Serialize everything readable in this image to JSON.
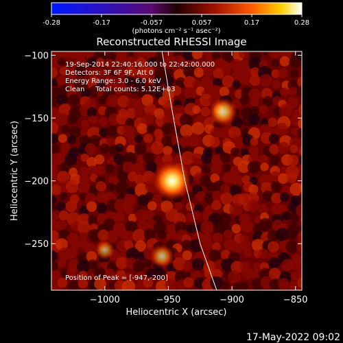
{
  "colorbar": {
    "ticks": [
      "-0.28",
      "-0.17",
      "-0.057",
      "0.057",
      "0.17",
      "0.28"
    ],
    "units": "(photons cm⁻² s⁻¹ asec⁻²)"
  },
  "chart_data": {
    "type": "heatmap",
    "title": "Reconstructed RHESSI Image",
    "xlabel": "Heliocentric X (arcsec)",
    "ylabel": "Heliocentric Y (arcsec)",
    "xlim": [
      -1042,
      -845
    ],
    "ylim": [
      -287,
      -97
    ],
    "x_ticks": [
      -1000,
      -950,
      -900,
      -850
    ],
    "y_ticks": [
      -250,
      -200,
      -150,
      -100
    ],
    "x_tick_labels": [
      "−1000",
      "−950",
      "−900",
      "−850"
    ],
    "y_tick_labels": [
      "−250",
      "−200",
      "−150",
      "−100"
    ],
    "color_range": [
      -0.28,
      0.28
    ],
    "colormap": "blue-purple-red-yellow-white",
    "annotations": [
      "19-Sep-2014 22:40:16.000 to 22:42:00.000",
      "Detectors: 3F 6F 9F, Att 0",
      "Energy Range: 3.0 - 6.0 keV",
      "Clean     Total counts: 5.12E+03",
      "Position of Peak = [-947,-200]"
    ],
    "sources": [
      {
        "x": -947,
        "y": -200,
        "peak": 0.28
      },
      {
        "x": -907,
        "y": -145,
        "peak": 0.17
      },
      {
        "x": -955,
        "y": -260,
        "peak": 0.12
      },
      {
        "x": -1000,
        "y": -255,
        "peak": 0.08
      }
    ],
    "limb_curve": [
      [
        -955,
        -97
      ],
      [
        -946,
        -150
      ],
      [
        -937,
        -200
      ],
      [
        -925,
        -250
      ],
      [
        -912,
        -287
      ]
    ],
    "peak_position": [
      -947,
      -200
    ]
  },
  "footer": {
    "timestamp": "17-May-2022 09:02"
  }
}
